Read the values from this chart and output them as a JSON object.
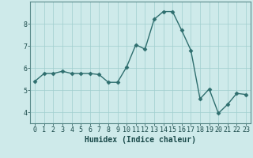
{
  "x": [
    0,
    1,
    2,
    3,
    4,
    5,
    6,
    7,
    8,
    9,
    10,
    11,
    12,
    13,
    14,
    15,
    16,
    17,
    18,
    19,
    20,
    21,
    22,
    23
  ],
  "y": [
    5.4,
    5.75,
    5.75,
    5.85,
    5.75,
    5.75,
    5.75,
    5.7,
    5.35,
    5.35,
    6.05,
    7.05,
    6.85,
    8.2,
    8.55,
    8.55,
    7.7,
    6.8,
    4.6,
    5.05,
    3.95,
    4.35,
    4.85,
    4.8
  ],
  "line_color": "#2e6e6e",
  "marker": "D",
  "markersize": 2.5,
  "linewidth": 1.0,
  "background_color": "#ceeaea",
  "grid_color": "#a0cece",
  "xlabel": "Humidex (Indice chaleur)",
  "xlabel_color": "#1a4a4a",
  "xlabel_fontsize": 7.0,
  "tick_color": "#1a4a4a",
  "tick_fontsize": 6.0,
  "ylim": [
    3.5,
    9.0
  ],
  "yticks": [
    4,
    5,
    6,
    7,
    8
  ],
  "xticks": [
    0,
    1,
    2,
    3,
    4,
    5,
    6,
    7,
    8,
    9,
    10,
    11,
    12,
    13,
    14,
    15,
    16,
    17,
    18,
    19,
    20,
    21,
    22,
    23
  ]
}
